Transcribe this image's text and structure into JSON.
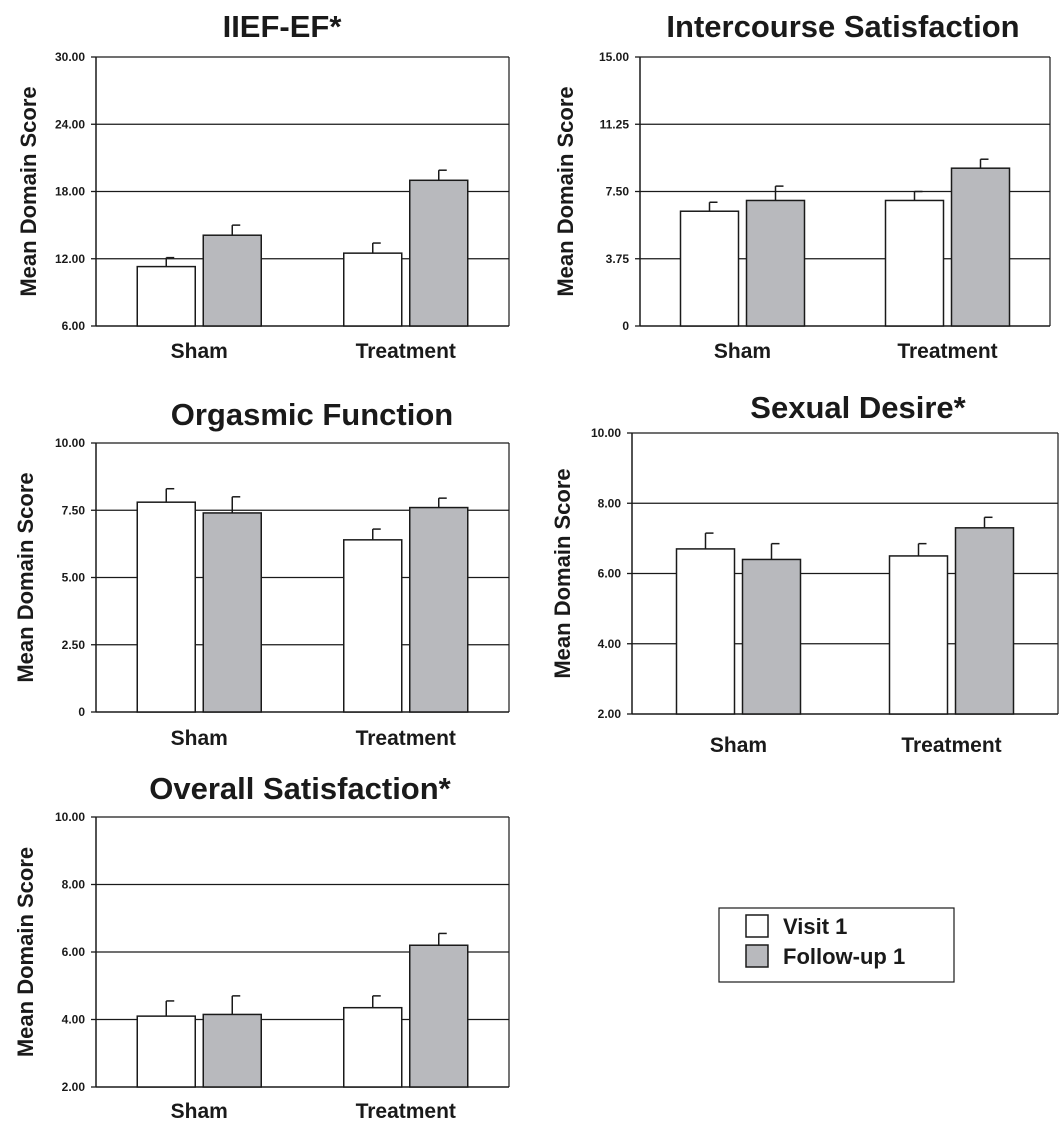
{
  "colors": {
    "visit1": "#ffffff",
    "followup1": "#b8b9bd",
    "line": "#1a1a1a"
  },
  "legend": {
    "visit1": "Visit 1",
    "followup1": "Follow-up 1"
  },
  "chart_data": [
    {
      "type": "bar",
      "title": "IIEF-EF*",
      "ylabel": "Mean Domain Score",
      "categories": [
        "Sham",
        "Treatment"
      ],
      "yticks": [
        "6.00",
        "12.00",
        "18.00",
        "24.00",
        "30.00"
      ],
      "ylim": [
        6,
        30
      ],
      "grid": true,
      "series": [
        {
          "name": "Visit 1",
          "values": [
            11.3,
            12.5
          ],
          "errors": [
            0.8,
            0.9
          ]
        },
        {
          "name": "Follow-up 1",
          "values": [
            14.1,
            19.0
          ],
          "errors": [
            0.9,
            0.9
          ]
        }
      ]
    },
    {
      "type": "bar",
      "title": "Intercourse Satisfaction",
      "ylabel": "Mean Domain Score",
      "categories": [
        "Sham",
        "Treatment"
      ],
      "yticks": [
        "0",
        "3.75",
        "7.50",
        "11.25",
        "15.00"
      ],
      "ylim": [
        0,
        15
      ],
      "grid": true,
      "series": [
        {
          "name": "Visit 1",
          "values": [
            6.4,
            7.0
          ],
          "errors": [
            0.5,
            0.5
          ]
        },
        {
          "name": "Follow-up 1",
          "values": [
            7.0,
            8.8
          ],
          "errors": [
            0.8,
            0.5
          ]
        }
      ]
    },
    {
      "type": "bar",
      "title": "Orgasmic Function",
      "ylabel": "Mean Domain Score",
      "categories": [
        "Sham",
        "Treatment"
      ],
      "yticks": [
        "0",
        "2.50",
        "5.00",
        "7.50",
        "10.00"
      ],
      "ylim": [
        0,
        10
      ],
      "grid": true,
      "series": [
        {
          "name": "Visit 1",
          "values": [
            7.8,
            6.4
          ],
          "errors": [
            0.5,
            0.4
          ]
        },
        {
          "name": "Follow-up 1",
          "values": [
            7.4,
            7.6
          ],
          "errors": [
            0.6,
            0.35
          ]
        }
      ]
    },
    {
      "type": "bar",
      "title": "Sexual Desire*",
      "ylabel": "Mean Domain Score",
      "categories": [
        "Sham",
        "Treatment"
      ],
      "yticks": [
        "2.00",
        "4.00",
        "6.00",
        "8.00",
        "10.00"
      ],
      "ylim": [
        2,
        10
      ],
      "grid": true,
      "series": [
        {
          "name": "Visit 1",
          "values": [
            6.7,
            6.5
          ],
          "errors": [
            0.45,
            0.35
          ]
        },
        {
          "name": "Follow-up 1",
          "values": [
            6.4,
            7.3
          ],
          "errors": [
            0.45,
            0.3
          ]
        }
      ]
    },
    {
      "type": "bar",
      "title": "Overall Satisfaction*",
      "ylabel": "Mean Domain Score",
      "categories": [
        "Sham",
        "Treatment"
      ],
      "yticks": [
        "2.00",
        "4.00",
        "6.00",
        "8.00",
        "10.00"
      ],
      "ylim": [
        2,
        10
      ],
      "grid": true,
      "series": [
        {
          "name": "Visit 1",
          "values": [
            4.1,
            4.35
          ],
          "errors": [
            0.45,
            0.35
          ]
        },
        {
          "name": "Follow-up 1",
          "values": [
            4.15,
            6.2
          ],
          "errors": [
            0.55,
            0.35
          ]
        }
      ]
    }
  ]
}
